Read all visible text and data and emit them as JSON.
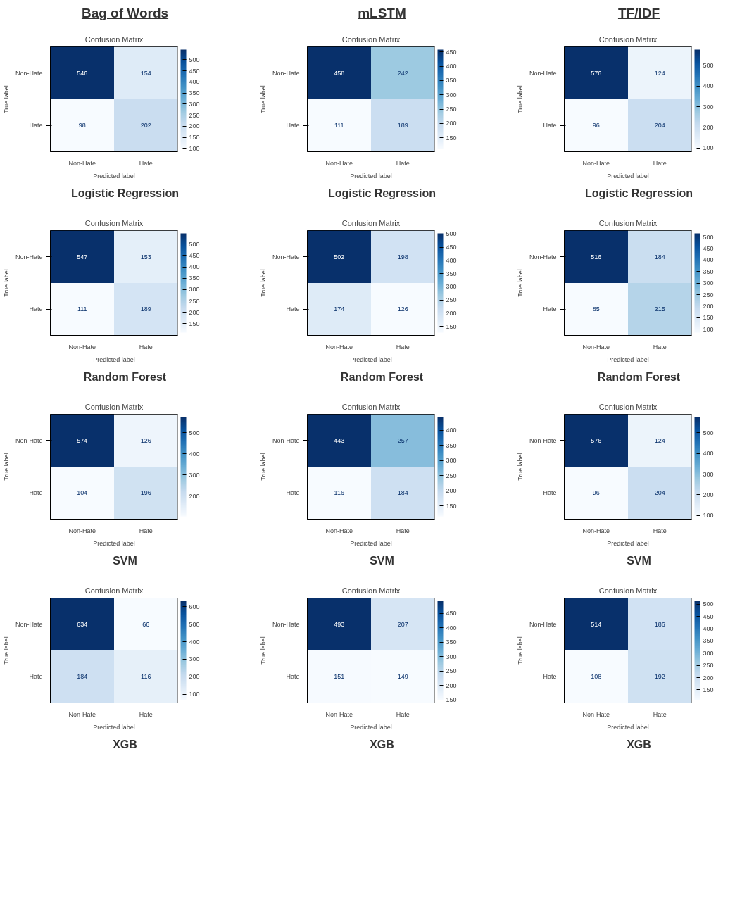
{
  "chart_data": [
    {
      "type": "heatmap",
      "subtitle": "Bag of Words",
      "title": "Confusion Matrix",
      "xlabel": "Predicted label",
      "ylabel": "True label",
      "categories": [
        "Non-Hate",
        "Hate"
      ],
      "y_categories": [
        "Non-Hate",
        "Hate"
      ],
      "cells": [
        [
          546,
          154
        ],
        [
          98,
          202
        ]
      ],
      "clim": [
        98,
        546
      ],
      "cticks": [
        100,
        150,
        200,
        250,
        300,
        350,
        400,
        450,
        500
      ],
      "data_labels": true,
      "annotations": [
        "Logistic Regression"
      ]
    },
    {
      "type": "heatmap",
      "subtitle": "mLSTM",
      "title": "Confusion Matrix",
      "xlabel": "Predicted label",
      "ylabel": "True label",
      "categories": [
        "Non-Hate",
        "Hate"
      ],
      "y_categories": [
        "Non-Hate",
        "Hate"
      ],
      "cells": [
        [
          458,
          242
        ],
        [
          111,
          189
        ]
      ],
      "clim": [
        111,
        458
      ],
      "cticks": [
        150,
        200,
        250,
        300,
        350,
        400,
        450
      ],
      "data_labels": true,
      "annotations": [
        "Logistic Regression"
      ]
    },
    {
      "type": "heatmap",
      "subtitle": "TF/IDF",
      "title": "Confusion Matrix",
      "xlabel": "Predicted label",
      "ylabel": "True label",
      "categories": [
        "Non-Hate",
        "Hate"
      ],
      "y_categories": [
        "Non-Hate",
        "Hate"
      ],
      "cells": [
        [
          576,
          124
        ],
        [
          96,
          204
        ]
      ],
      "clim": [
        96,
        576
      ],
      "cticks": [
        100,
        200,
        300,
        400,
        500
      ],
      "data_labels": true,
      "annotations": [
        "Logistic Regression"
      ]
    },
    {
      "type": "heatmap",
      "title": "Confusion Matrix",
      "xlabel": "Predicted label",
      "ylabel": "True label",
      "categories": [
        "Non-Hate",
        "Hate"
      ],
      "y_categories": [
        "Non-Hate",
        "Hate"
      ],
      "cells": [
        [
          547,
          153
        ],
        [
          111,
          189
        ]
      ],
      "clim": [
        111,
        547
      ],
      "cticks": [
        150,
        200,
        250,
        300,
        350,
        400,
        450,
        500
      ],
      "data_labels": true,
      "annotations": [
        "Random Forest"
      ]
    },
    {
      "type": "heatmap",
      "title": "Confusion Matrix",
      "xlabel": "Predicted label",
      "ylabel": "True label",
      "categories": [
        "Non-Hate",
        "Hate"
      ],
      "y_categories": [
        "Non-Hate",
        "Hate"
      ],
      "cells": [
        [
          502,
          198
        ],
        [
          174,
          126
        ]
      ],
      "clim": [
        126,
        502
      ],
      "cticks": [
        150,
        200,
        250,
        300,
        350,
        400,
        450,
        500
      ],
      "data_labels": true,
      "annotations": [
        "Random Forest"
      ]
    },
    {
      "type": "heatmap",
      "title": "Confusion Matrix",
      "xlabel": "Predicted label",
      "ylabel": "True label",
      "categories": [
        "Non-Hate",
        "Hate"
      ],
      "y_categories": [
        "Non-Hate",
        "Hate"
      ],
      "cells": [
        [
          516,
          184
        ],
        [
          85,
          215
        ]
      ],
      "clim": [
        85,
        516
      ],
      "cticks": [
        100,
        150,
        200,
        250,
        300,
        350,
        400,
        450,
        500
      ],
      "data_labels": true,
      "annotations": [
        "Random Forest"
      ]
    },
    {
      "type": "heatmap",
      "title": "Confusion Matrix",
      "xlabel": "Predicted label",
      "ylabel": "True label",
      "categories": [
        "Non-Hate",
        "Hate"
      ],
      "y_categories": [
        "Non-Hate",
        "Hate"
      ],
      "cells": [
        [
          574,
          126
        ],
        [
          104,
          196
        ]
      ],
      "clim": [
        104,
        574
      ],
      "cticks": [
        200,
        300,
        400,
        500
      ],
      "data_labels": true,
      "annotations": [
        "SVM"
      ]
    },
    {
      "type": "heatmap",
      "title": "Confusion Matrix",
      "xlabel": "Predicted label",
      "ylabel": "True label",
      "categories": [
        "Non-Hate",
        "Hate"
      ],
      "y_categories": [
        "Non-Hate",
        "Hate"
      ],
      "cells": [
        [
          443,
          257
        ],
        [
          116,
          184
        ]
      ],
      "clim": [
        116,
        443
      ],
      "cticks": [
        150,
        200,
        250,
        300,
        350,
        400
      ],
      "data_labels": true,
      "annotations": [
        "SVM"
      ]
    },
    {
      "type": "heatmap",
      "title": "Confusion Matrix",
      "xlabel": "Predicted label",
      "ylabel": "True label",
      "categories": [
        "Non-Hate",
        "Hate"
      ],
      "y_categories": [
        "Non-Hate",
        "Hate"
      ],
      "cells": [
        [
          576,
          124
        ],
        [
          96,
          204
        ]
      ],
      "clim": [
        96,
        576
      ],
      "cticks": [
        100,
        200,
        300,
        400,
        500
      ],
      "data_labels": true,
      "annotations": [
        "SVM"
      ]
    },
    {
      "type": "heatmap",
      "title": "Confusion Matrix",
      "xlabel": "Predicted label",
      "ylabel": "True label",
      "categories": [
        "Non-Hate",
        "Hate"
      ],
      "y_categories": [
        "Non-Hate",
        "Hate"
      ],
      "cells": [
        [
          634,
          66
        ],
        [
          184,
          116
        ]
      ],
      "clim": [
        66,
        634
      ],
      "cticks": [
        100,
        200,
        300,
        400,
        500,
        600
      ],
      "data_labels": true,
      "annotations": [
        "XGB"
      ]
    },
    {
      "type": "heatmap",
      "title": "Confusion Matrix",
      "xlabel": "Predicted label",
      "ylabel": "True label",
      "categories": [
        "Non-Hate",
        "Hate"
      ],
      "y_categories": [
        "Non-Hate",
        "Hate"
      ],
      "cells": [
        [
          493,
          207
        ],
        [
          151,
          149
        ]
      ],
      "clim": [
        149,
        493
      ],
      "cticks": [
        150,
        200,
        250,
        300,
        350,
        400,
        450
      ],
      "data_labels": true,
      "annotations": [
        "XGB"
      ]
    },
    {
      "type": "heatmap",
      "title": "Confusion Matrix",
      "xlabel": "Predicted label",
      "ylabel": "True label",
      "categories": [
        "Non-Hate",
        "Hate"
      ],
      "y_categories": [
        "Non-Hate",
        "Hate"
      ],
      "cells": [
        [
          514,
          186
        ],
        [
          108,
          192
        ]
      ],
      "clim": [
        108,
        514
      ],
      "cticks": [
        150,
        200,
        250,
        300,
        350,
        400,
        450,
        500
      ],
      "data_labels": true,
      "annotations": [
        "XGB"
      ]
    }
  ]
}
